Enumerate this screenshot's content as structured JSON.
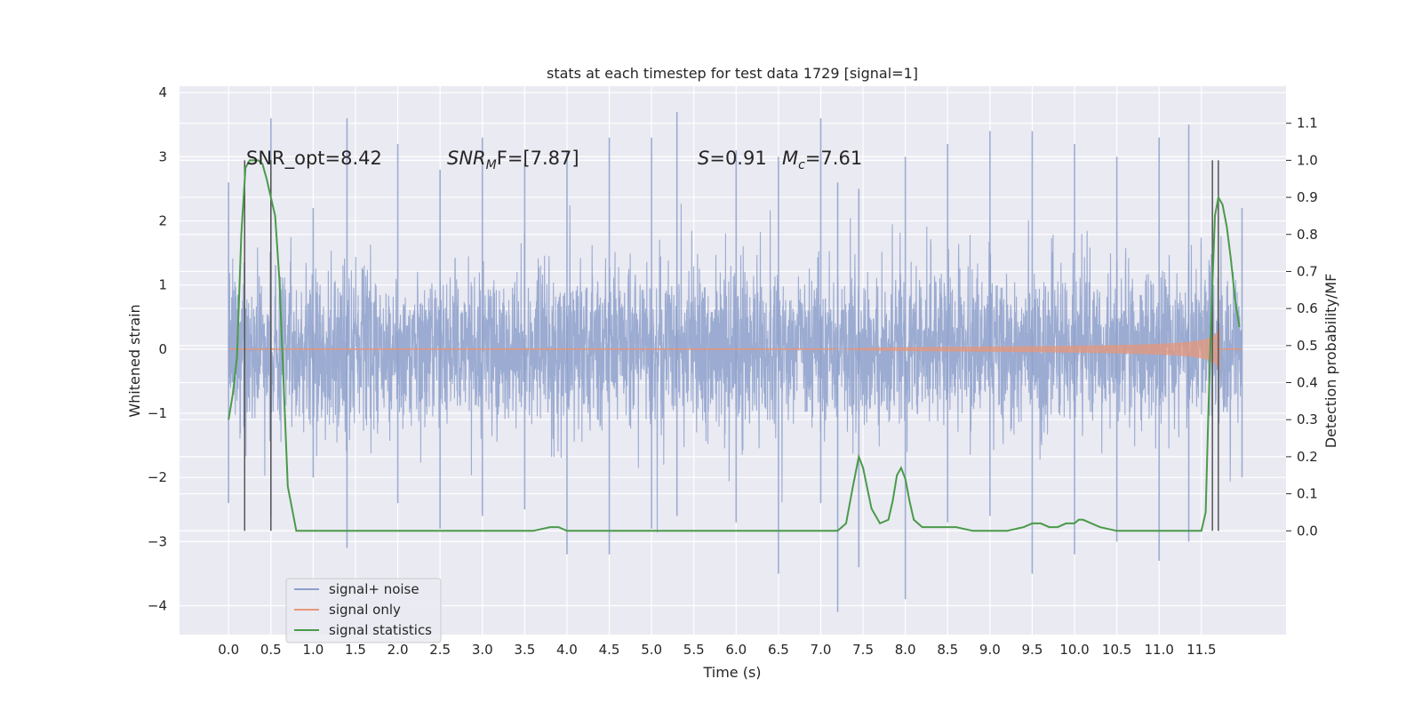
{
  "chart_data": {
    "type": "line",
    "title": "stats at each timestep for test data 1729 [signal=1]",
    "xlabel": "Time (s)",
    "ylabel": "Whitened strain",
    "y2label": "Detection probability/MF",
    "xlim": [
      -0.58,
      12.5
    ],
    "ylim": [
      -4.45,
      4.1
    ],
    "y2lim": [
      -0.28,
      1.2
    ],
    "x_ticks": [
      0.0,
      0.5,
      1.0,
      1.5,
      2.0,
      2.5,
      3.0,
      3.5,
      4.0,
      4.5,
      5.0,
      5.5,
      6.0,
      6.5,
      7.0,
      7.5,
      8.0,
      8.5,
      9.0,
      9.5,
      10.0,
      10.5,
      11.0,
      11.5
    ],
    "x_tick_labels": [
      "0.0",
      "0.5",
      "1.0",
      "1.5",
      "2.0",
      "2.5",
      "3.0",
      "3.5",
      "4.0",
      "4.5",
      "5.0",
      "5.5",
      "6.0",
      "6.5",
      "7.0",
      "7.5",
      "8.0",
      "8.5",
      "9.0",
      "9.5",
      "10.0",
      "10.5",
      "11.0",
      "11.5"
    ],
    "y_ticks": [
      4,
      3,
      2,
      1,
      0,
      -1,
      -2,
      -3,
      -4
    ],
    "y_tick_labels": [
      "4",
      "3",
      "2",
      "1",
      "0",
      "−1",
      "−2",
      "−3",
      "−4"
    ],
    "y2_ticks": [
      1.1,
      1.0,
      0.9,
      0.8,
      0.7,
      0.6,
      0.5,
      0.4,
      0.3,
      0.2,
      0.1,
      0.0
    ],
    "y2_tick_labels": [
      "1.1",
      "1.0",
      "0.9",
      "0.8",
      "0.7",
      "0.6",
      "0.5",
      "0.4",
      "0.3",
      "0.2",
      "0.1",
      "0.0"
    ],
    "grid": true,
    "legend_placement": "lower-left",
    "annotations": {
      "snr_opt": "SNR_opt=8.42",
      "snr_mf_italic": "SNR",
      "snr_mf_sub": "M",
      "snr_mf_rest": "F=[7.87]",
      "s_italic": "S",
      "s_value": "=0.91",
      "mc_italic": "M",
      "mc_sub": "c",
      "mc_value": "=7.61"
    },
    "series": [
      {
        "name": "signal+ noise",
        "color": "#8da0cb",
        "axis": "left",
        "x_range": [
          0.0,
          11.98
        ],
        "envelope_typical": 1.85,
        "envelope_peaks": [
          [
            0.0,
            2.6,
            -2.4
          ],
          [
            0.5,
            3.6,
            -2.6
          ],
          [
            1.0,
            2.2,
            -2.0
          ],
          [
            1.4,
            3.6,
            -3.1
          ],
          [
            2.0,
            3.2,
            -2.4
          ],
          [
            2.5,
            2.8,
            -2.8
          ],
          [
            3.0,
            3.3,
            -2.6
          ],
          [
            3.5,
            2.9,
            -2.5
          ],
          [
            4.0,
            3.1,
            -3.2
          ],
          [
            4.5,
            3.3,
            -3.2
          ],
          [
            5.0,
            3.3,
            -2.8
          ],
          [
            5.3,
            3.7,
            -2.6
          ],
          [
            6.0,
            3.1,
            -2.7
          ],
          [
            6.5,
            3.0,
            -3.5
          ],
          [
            7.0,
            3.6,
            -2.4
          ],
          [
            7.2,
            2.6,
            -4.1
          ],
          [
            7.45,
            2.5,
            -3.4
          ],
          [
            8.0,
            3.0,
            -3.9
          ],
          [
            8.5,
            3.2,
            -2.7
          ],
          [
            9.0,
            3.4,
            -2.6
          ],
          [
            9.5,
            3.4,
            -3.5
          ],
          [
            10.0,
            3.2,
            -3.2
          ],
          [
            10.5,
            3.0,
            -3.0
          ],
          [
            11.0,
            3.3,
            -3.3
          ],
          [
            11.35,
            3.5,
            -3.0
          ],
          [
            11.98,
            2.2,
            -2.0
          ]
        ]
      },
      {
        "name": "signal only",
        "color": "#e5977a",
        "axis": "left",
        "chirp_start": 7.2,
        "chirp_end": 11.72,
        "chirp_peak_amplitude": 0.75
      },
      {
        "name": "signal statistics",
        "color": "#4a9a4a",
        "axis": "right",
        "x": [
          0.0,
          0.05,
          0.1,
          0.15,
          0.2,
          0.25,
          0.3,
          0.35,
          0.4,
          0.45,
          0.5,
          0.55,
          0.6,
          0.65,
          0.7,
          0.75,
          0.8,
          0.9,
          1.0,
          1.2,
          1.4,
          1.6,
          1.8,
          2.0,
          2.2,
          2.4,
          2.6,
          2.8,
          3.0,
          3.2,
          3.4,
          3.6,
          3.8,
          3.9,
          4.0,
          4.5,
          5.0,
          5.5,
          6.0,
          6.5,
          7.0,
          7.2,
          7.3,
          7.38,
          7.45,
          7.5,
          7.6,
          7.7,
          7.8,
          7.85,
          7.9,
          7.95,
          8.0,
          8.05,
          8.1,
          8.2,
          8.4,
          8.5,
          8.6,
          8.8,
          9.0,
          9.2,
          9.4,
          9.5,
          9.6,
          9.7,
          9.8,
          9.9,
          10.0,
          10.05,
          10.1,
          10.2,
          10.3,
          10.5,
          10.8,
          11.0,
          11.2,
          11.4,
          11.5,
          11.55,
          11.58,
          11.62,
          11.66,
          11.7,
          11.75,
          11.8,
          11.85,
          11.9,
          11.95
        ],
        "y": [
          0.3,
          0.37,
          0.47,
          0.8,
          0.98,
          1.0,
          1.0,
          1.0,
          0.99,
          0.95,
          0.9,
          0.85,
          0.68,
          0.4,
          0.12,
          0.06,
          0.0,
          0.0,
          0.0,
          0.0,
          0.0,
          0.0,
          0.0,
          0.0,
          0.0,
          0.0,
          0.0,
          0.0,
          0.0,
          0.0,
          0.0,
          0.0,
          0.01,
          0.01,
          0.0,
          0.0,
          0.0,
          0.0,
          0.0,
          0.0,
          0.0,
          0.0,
          0.02,
          0.12,
          0.2,
          0.17,
          0.06,
          0.02,
          0.03,
          0.08,
          0.15,
          0.17,
          0.14,
          0.08,
          0.03,
          0.01,
          0.01,
          0.01,
          0.01,
          0.0,
          0.0,
          0.0,
          0.01,
          0.02,
          0.02,
          0.01,
          0.01,
          0.02,
          0.02,
          0.03,
          0.03,
          0.02,
          0.01,
          0.0,
          0.0,
          0.0,
          0.0,
          0.0,
          0.0,
          0.05,
          0.3,
          0.6,
          0.85,
          0.9,
          0.88,
          0.82,
          0.73,
          0.62,
          0.55
        ]
      }
    ],
    "vertical_markers": [
      0.19,
      0.5,
      11.63,
      11.7
    ]
  }
}
